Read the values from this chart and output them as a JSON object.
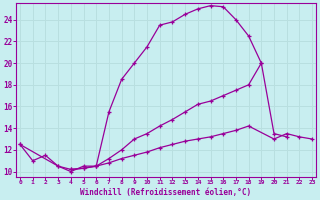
{
  "xlabel": "Windchill (Refroidissement éolien,°C)",
  "background_color": "#c8eef0",
  "line_color": "#990099",
  "grid_color": "#b8dfe0",
  "x_min": 0,
  "x_max": 23,
  "y_min": 9.5,
  "y_max": 25.5,
  "yticks": [
    10,
    12,
    14,
    16,
    18,
    20,
    22,
    24
  ],
  "xticks": [
    0,
    1,
    2,
    3,
    4,
    5,
    6,
    7,
    8,
    9,
    10,
    11,
    12,
    13,
    14,
    15,
    16,
    17,
    18,
    19,
    20,
    21,
    22,
    23
  ],
  "series": [
    {
      "x": [
        0,
        1,
        2,
        3,
        4,
        5,
        6,
        7,
        8,
        9,
        10,
        11,
        12,
        13,
        14,
        15,
        16,
        17,
        18,
        19
      ],
      "y": [
        12.5,
        11.0,
        11.5,
        10.5,
        10.0,
        10.5,
        10.5,
        15.5,
        18.5,
        20.0,
        21.5,
        23.5,
        23.8,
        24.5,
        25.0,
        25.3,
        25.2,
        24.0,
        22.5,
        20.0
      ]
    },
    {
      "x": [
        0,
        3,
        4,
        5,
        6,
        7,
        8,
        9,
        10,
        11,
        12,
        13,
        14,
        15,
        16,
        17,
        18,
        19,
        20,
        21
      ],
      "y": [
        12.5,
        10.5,
        10.2,
        10.3,
        10.5,
        11.2,
        12.0,
        13.0,
        13.5,
        14.2,
        14.8,
        15.5,
        16.2,
        16.5,
        17.0,
        17.5,
        18.0,
        20.0,
        13.5,
        13.2
      ]
    },
    {
      "x": [
        4,
        5,
        6,
        7,
        8,
        9,
        10,
        11,
        12,
        13,
        14,
        15,
        16,
        17,
        18,
        20,
        21,
        22,
        23
      ],
      "y": [
        10.2,
        10.3,
        10.5,
        10.8,
        11.2,
        11.5,
        11.8,
        12.2,
        12.5,
        12.8,
        13.0,
        13.2,
        13.5,
        13.8,
        14.2,
        13.0,
        13.5,
        13.2,
        13.0
      ]
    }
  ]
}
